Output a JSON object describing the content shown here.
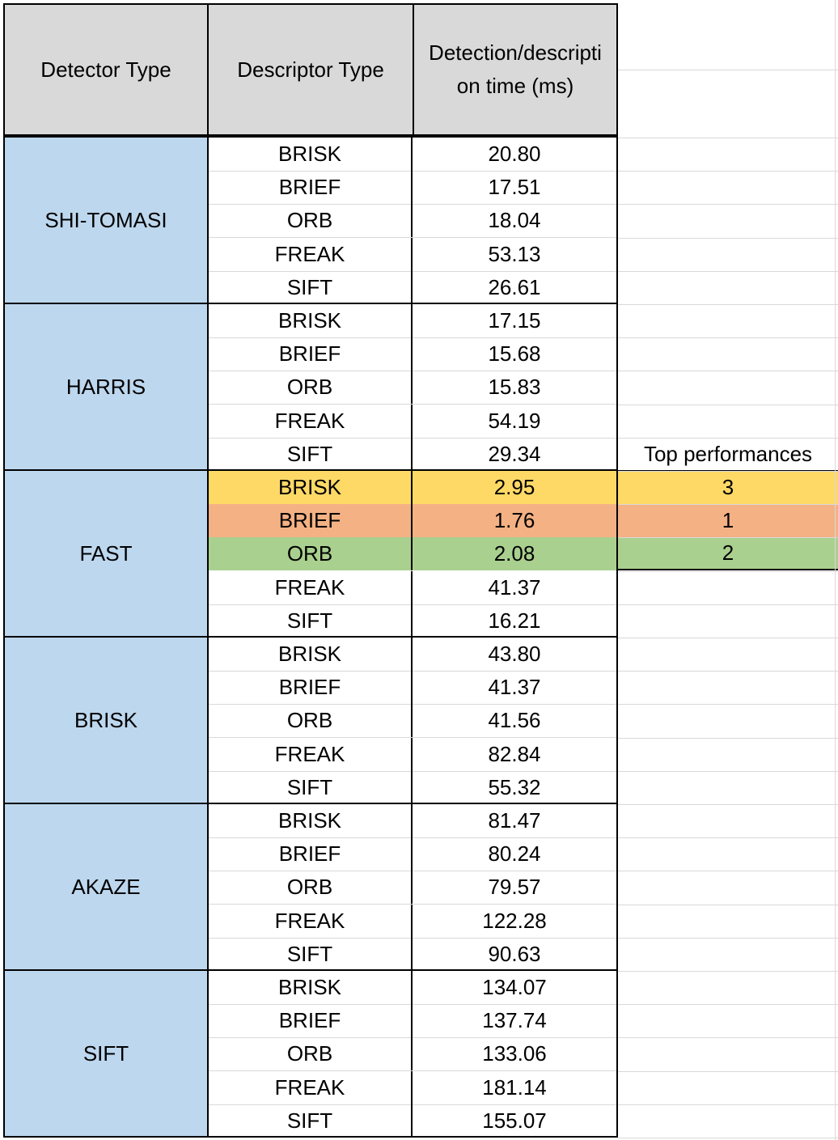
{
  "header": {
    "detector_type": "Detector Type",
    "descriptor_type": "Descriptor Type",
    "time_line1": "Detection/descripti",
    "time_line2": "on time (ms)"
  },
  "groups": [
    {
      "detector": "SHI-TOMASI",
      "rows": [
        {
          "descriptor": "BRISK",
          "time": "20.80"
        },
        {
          "descriptor": "BRIEF",
          "time": "17.51"
        },
        {
          "descriptor": "ORB",
          "time": "18.04"
        },
        {
          "descriptor": "FREAK",
          "time": "53.13"
        },
        {
          "descriptor": "SIFT",
          "time": "26.61"
        }
      ]
    },
    {
      "detector": "HARRIS",
      "rows": [
        {
          "descriptor": "BRISK",
          "time": "17.15"
        },
        {
          "descriptor": "BRIEF",
          "time": "15.68"
        },
        {
          "descriptor": "ORB",
          "time": "15.83"
        },
        {
          "descriptor": "FREAK",
          "time": "54.19"
        },
        {
          "descriptor": "SIFT",
          "time": "29.34"
        }
      ]
    },
    {
      "detector": "FAST",
      "rows": [
        {
          "descriptor": "BRISK",
          "time": "2.95",
          "rank": "3",
          "highlight": "#ffd966"
        },
        {
          "descriptor": "BRIEF",
          "time": "1.76",
          "rank": "1",
          "highlight": "#f4b183"
        },
        {
          "descriptor": "ORB",
          "time": "2.08",
          "rank": "2",
          "highlight": "#a9d08e"
        },
        {
          "descriptor": "FREAK",
          "time": "41.37"
        },
        {
          "descriptor": "SIFT",
          "time": "16.21"
        }
      ]
    },
    {
      "detector": "BRISK",
      "rows": [
        {
          "descriptor": "BRISK",
          "time": "43.80"
        },
        {
          "descriptor": "BRIEF",
          "time": "41.37"
        },
        {
          "descriptor": "ORB",
          "time": "41.56"
        },
        {
          "descriptor": "FREAK",
          "time": "82.84"
        },
        {
          "descriptor": "SIFT",
          "time": "55.32"
        }
      ]
    },
    {
      "detector": "AKAZE",
      "rows": [
        {
          "descriptor": "BRISK",
          "time": "81.47"
        },
        {
          "descriptor": "BRIEF",
          "time": "80.24"
        },
        {
          "descriptor": "ORB",
          "time": "79.57"
        },
        {
          "descriptor": "FREAK",
          "time": "122.28"
        },
        {
          "descriptor": "SIFT",
          "time": "90.63"
        }
      ]
    },
    {
      "detector": "SIFT",
      "rows": [
        {
          "descriptor": "BRISK",
          "time": "134.07"
        },
        {
          "descriptor": "BRIEF",
          "time": "137.74"
        },
        {
          "descriptor": "ORB",
          "time": "133.06"
        },
        {
          "descriptor": "FREAK",
          "time": "181.14"
        },
        {
          "descriptor": "SIFT",
          "time": "155.07"
        }
      ]
    }
  ],
  "top_performances": {
    "label": "Top performances"
  },
  "colors": {
    "header_bg": "#d9d9d9",
    "detector_bg": "#bdd7ee",
    "rank_3": "#ffd966",
    "rank_1": "#f4b183",
    "rank_2": "#a9d08e"
  }
}
